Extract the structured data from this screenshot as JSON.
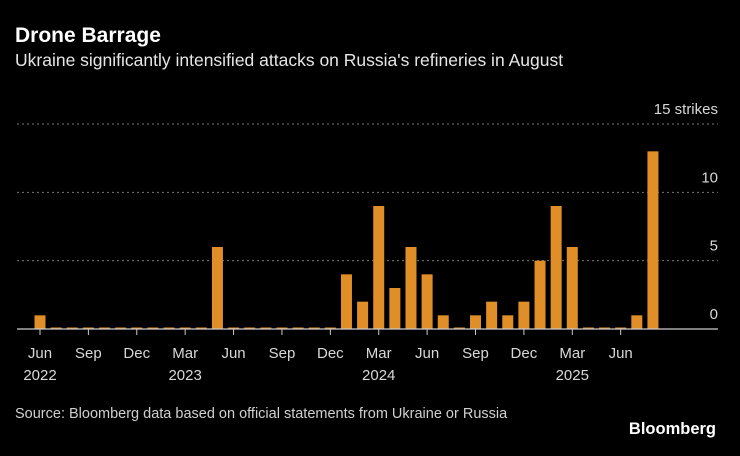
{
  "title": "Drone Barrage",
  "subtitle": "Ukraine significantly intensified attacks on Russia's refineries in August",
  "source": "Source: Bloomberg data based on official statements from Ukraine or Russia",
  "logo": "Bloomberg",
  "chart_data": {
    "type": "bar",
    "title": "Drone Barrage",
    "ylabel_unit": "strikes",
    "ylim": [
      0,
      15
    ],
    "yticks": [
      0,
      5,
      10,
      15
    ],
    "ytick_labels": [
      "0",
      "5",
      "10",
      "15 strikes"
    ],
    "grid": true,
    "bar_color": "#e08e27",
    "categories": [
      "Jun 2022",
      "Jul 2022",
      "Aug 2022",
      "Sep 2022",
      "Oct 2022",
      "Nov 2022",
      "Dec 2022",
      "Jan 2023",
      "Feb 2023",
      "Mar 2023",
      "Apr 2023",
      "May 2023",
      "Jun 2023",
      "Jul 2023",
      "Aug 2023",
      "Sep 2023",
      "Oct 2023",
      "Nov 2023",
      "Dec 2023",
      "Jan 2024",
      "Feb 2024",
      "Mar 2024",
      "Apr 2024",
      "May 2024",
      "Jun 2024",
      "Jul 2024",
      "Aug 2024",
      "Sep 2024",
      "Oct 2024",
      "Nov 2024",
      "Dec 2024",
      "Jan 2025",
      "Feb 2025",
      "Mar 2025",
      "Apr 2025",
      "May 2025",
      "Jun 2025",
      "Jul 2025",
      "Aug 2025"
    ],
    "values": [
      1,
      0,
      0,
      0,
      0,
      0,
      0,
      0,
      0,
      0,
      0,
      6,
      0,
      0,
      0,
      0,
      0,
      0,
      0,
      4,
      2,
      9,
      3,
      6,
      4,
      1,
      0,
      1,
      2,
      1,
      2,
      5,
      9,
      6,
      0,
      0,
      0,
      1,
      13
    ],
    "xticks": [
      {
        "index": 0,
        "label": "Jun",
        "year": "2022"
      },
      {
        "index": 3,
        "label": "Sep",
        "year": ""
      },
      {
        "index": 6,
        "label": "Dec",
        "year": ""
      },
      {
        "index": 9,
        "label": "Mar",
        "year": "2023"
      },
      {
        "index": 12,
        "label": "Jun",
        "year": ""
      },
      {
        "index": 15,
        "label": "Sep",
        "year": ""
      },
      {
        "index": 18,
        "label": "Dec",
        "year": ""
      },
      {
        "index": 21,
        "label": "Mar",
        "year": "2024"
      },
      {
        "index": 24,
        "label": "Jun",
        "year": ""
      },
      {
        "index": 27,
        "label": "Sep",
        "year": ""
      },
      {
        "index": 30,
        "label": "Dec",
        "year": ""
      },
      {
        "index": 33,
        "label": "Mar",
        "year": "2025"
      },
      {
        "index": 36,
        "label": "Jun",
        "year": ""
      }
    ]
  }
}
